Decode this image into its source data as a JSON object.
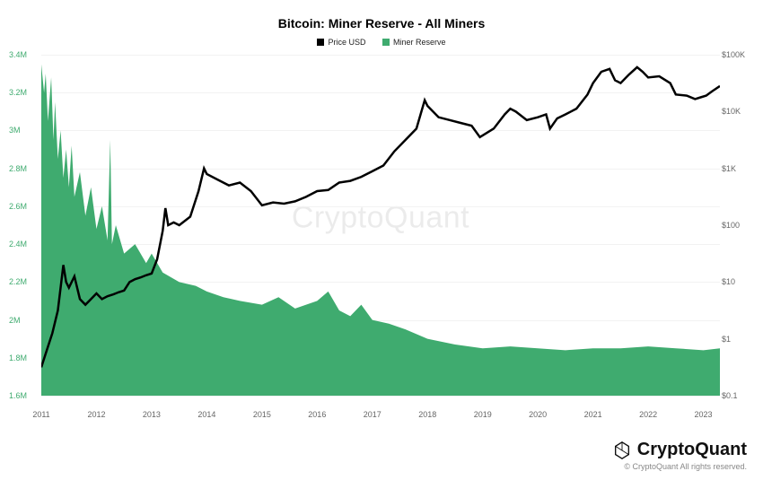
{
  "title": "Bitcoin: Miner Reserve - All Miners",
  "legend": {
    "series1": {
      "label": "Price USD",
      "color": "#000000"
    },
    "series2": {
      "label": "Miner Reserve",
      "color": "#3fab6f"
    }
  },
  "watermark": "CryptoQuant",
  "brand": "CryptoQuant",
  "copyright": "© CryptoQuant All rights reserved.",
  "chart": {
    "type": "combo-area-line",
    "background_color": "#ffffff",
    "grid_color": "#f2f2f2",
    "left_axis": {
      "label_color": "#3fab6f",
      "scale": "linear",
      "min": 1.6,
      "max": 3.4,
      "ticks": [
        1.6,
        1.8,
        2.0,
        2.2,
        2.4,
        2.6,
        2.8,
        3.0,
        3.2,
        3.4
      ],
      "tick_labels": [
        "1.6M",
        "1.8M",
        "2M",
        "2.2M",
        "2.4M",
        "2.6M",
        "2.8M",
        "3M",
        "3.2M",
        "3.4M"
      ]
    },
    "right_axis": {
      "label_color": "#666666",
      "scale": "log",
      "min_exp": -1,
      "max_exp": 5,
      "ticks_exp": [
        -1,
        0,
        1,
        2,
        3,
        4,
        5
      ],
      "tick_labels": [
        "$0.1",
        "$1",
        "$10",
        "$100",
        "$1K",
        "$10K",
        "$100K"
      ]
    },
    "x_axis": {
      "min": 2011,
      "max": 2023.3,
      "ticks": [
        2011,
        2012,
        2013,
        2014,
        2015,
        2016,
        2017,
        2018,
        2019,
        2020,
        2021,
        2022,
        2023
      ],
      "tick_labels": [
        "2011",
        "2012",
        "2013",
        "2014",
        "2015",
        "2016",
        "2017",
        "2018",
        "2019",
        "2020",
        "2021",
        "2022",
        "2023"
      ],
      "label_color": "#666666",
      "label_fontsize": 9
    },
    "area_series": {
      "color": "#3fab6f",
      "fill_opacity": 1.0,
      "data": [
        [
          2011.0,
          3.35
        ],
        [
          2011.05,
          3.2
        ],
        [
          2011.08,
          3.3
        ],
        [
          2011.12,
          3.05
        ],
        [
          2011.18,
          3.28
        ],
        [
          2011.22,
          2.95
        ],
        [
          2011.25,
          3.15
        ],
        [
          2011.3,
          2.85
        ],
        [
          2011.35,
          3.0
        ],
        [
          2011.4,
          2.75
        ],
        [
          2011.45,
          2.9
        ],
        [
          2011.5,
          2.7
        ],
        [
          2011.55,
          2.92
        ],
        [
          2011.6,
          2.65
        ],
        [
          2011.7,
          2.78
        ],
        [
          2011.8,
          2.55
        ],
        [
          2011.9,
          2.7
        ],
        [
          2012.0,
          2.48
        ],
        [
          2012.1,
          2.6
        ],
        [
          2012.2,
          2.42
        ],
        [
          2012.25,
          2.95
        ],
        [
          2012.28,
          2.4
        ],
        [
          2012.35,
          2.5
        ],
        [
          2012.5,
          2.35
        ],
        [
          2012.7,
          2.4
        ],
        [
          2012.9,
          2.3
        ],
        [
          2013.0,
          2.35
        ],
        [
          2013.2,
          2.25
        ],
        [
          2013.5,
          2.2
        ],
        [
          2013.8,
          2.18
        ],
        [
          2014.0,
          2.15
        ],
        [
          2014.3,
          2.12
        ],
        [
          2014.6,
          2.1
        ],
        [
          2015.0,
          2.08
        ],
        [
          2015.3,
          2.12
        ],
        [
          2015.6,
          2.06
        ],
        [
          2016.0,
          2.1
        ],
        [
          2016.2,
          2.15
        ],
        [
          2016.4,
          2.05
        ],
        [
          2016.6,
          2.02
        ],
        [
          2016.8,
          2.08
        ],
        [
          2017.0,
          2.0
        ],
        [
          2017.3,
          1.98
        ],
        [
          2017.6,
          1.95
        ],
        [
          2018.0,
          1.9
        ],
        [
          2018.5,
          1.87
        ],
        [
          2019.0,
          1.85
        ],
        [
          2019.5,
          1.86
        ],
        [
          2020.0,
          1.85
        ],
        [
          2020.5,
          1.84
        ],
        [
          2021.0,
          1.85
        ],
        [
          2021.5,
          1.85
        ],
        [
          2022.0,
          1.86
        ],
        [
          2022.5,
          1.85
        ],
        [
          2023.0,
          1.84
        ],
        [
          2023.3,
          1.85
        ]
      ]
    },
    "line_series": {
      "color": "#000000",
      "line_width": 1,
      "data_log": [
        [
          2011.0,
          -0.5
        ],
        [
          2011.1,
          -0.2
        ],
        [
          2011.2,
          0.1
        ],
        [
          2011.3,
          0.5
        ],
        [
          2011.4,
          1.3
        ],
        [
          2011.45,
          1.0
        ],
        [
          2011.5,
          0.9
        ],
        [
          2011.6,
          1.1
        ],
        [
          2011.7,
          0.7
        ],
        [
          2011.8,
          0.6
        ],
        [
          2011.9,
          0.7
        ],
        [
          2012.0,
          0.8
        ],
        [
          2012.1,
          0.7
        ],
        [
          2012.2,
          0.75
        ],
        [
          2012.3,
          0.78
        ],
        [
          2012.4,
          0.82
        ],
        [
          2012.5,
          0.85
        ],
        [
          2012.6,
          1.0
        ],
        [
          2012.7,
          1.05
        ],
        [
          2012.8,
          1.08
        ],
        [
          2012.9,
          1.12
        ],
        [
          2013.0,
          1.15
        ],
        [
          2013.1,
          1.4
        ],
        [
          2013.2,
          1.9
        ],
        [
          2013.25,
          2.3
        ],
        [
          2013.3,
          2.0
        ],
        [
          2013.4,
          2.05
        ],
        [
          2013.5,
          2.0
        ],
        [
          2013.7,
          2.15
        ],
        [
          2013.85,
          2.6
        ],
        [
          2013.95,
          3.0
        ],
        [
          2014.0,
          2.9
        ],
        [
          2014.2,
          2.8
        ],
        [
          2014.4,
          2.7
        ],
        [
          2014.6,
          2.75
        ],
        [
          2014.8,
          2.6
        ],
        [
          2015.0,
          2.35
        ],
        [
          2015.2,
          2.4
        ],
        [
          2015.4,
          2.38
        ],
        [
          2015.6,
          2.42
        ],
        [
          2015.8,
          2.5
        ],
        [
          2016.0,
          2.6
        ],
        [
          2016.2,
          2.62
        ],
        [
          2016.4,
          2.75
        ],
        [
          2016.6,
          2.78
        ],
        [
          2016.8,
          2.85
        ],
        [
          2017.0,
          2.95
        ],
        [
          2017.2,
          3.05
        ],
        [
          2017.4,
          3.3
        ],
        [
          2017.6,
          3.5
        ],
        [
          2017.8,
          3.7
        ],
        [
          2017.95,
          4.2
        ],
        [
          2018.0,
          4.1
        ],
        [
          2018.2,
          3.9
        ],
        [
          2018.4,
          3.85
        ],
        [
          2018.6,
          3.8
        ],
        [
          2018.8,
          3.75
        ],
        [
          2018.95,
          3.55
        ],
        [
          2019.0,
          3.58
        ],
        [
          2019.2,
          3.7
        ],
        [
          2019.4,
          3.95
        ],
        [
          2019.5,
          4.05
        ],
        [
          2019.6,
          4.0
        ],
        [
          2019.8,
          3.85
        ],
        [
          2020.0,
          3.9
        ],
        [
          2020.15,
          3.95
        ],
        [
          2020.22,
          3.7
        ],
        [
          2020.35,
          3.88
        ],
        [
          2020.5,
          3.95
        ],
        [
          2020.7,
          4.05
        ],
        [
          2020.9,
          4.3
        ],
        [
          2021.0,
          4.5
        ],
        [
          2021.15,
          4.7
        ],
        [
          2021.3,
          4.75
        ],
        [
          2021.4,
          4.55
        ],
        [
          2021.5,
          4.5
        ],
        [
          2021.65,
          4.65
        ],
        [
          2021.8,
          4.78
        ],
        [
          2021.9,
          4.7
        ],
        [
          2022.0,
          4.6
        ],
        [
          2022.2,
          4.62
        ],
        [
          2022.4,
          4.5
        ],
        [
          2022.5,
          4.3
        ],
        [
          2022.7,
          4.28
        ],
        [
          2022.85,
          4.22
        ],
        [
          2022.95,
          4.25
        ],
        [
          2023.05,
          4.28
        ],
        [
          2023.15,
          4.35
        ],
        [
          2023.3,
          4.45
        ]
      ]
    }
  }
}
